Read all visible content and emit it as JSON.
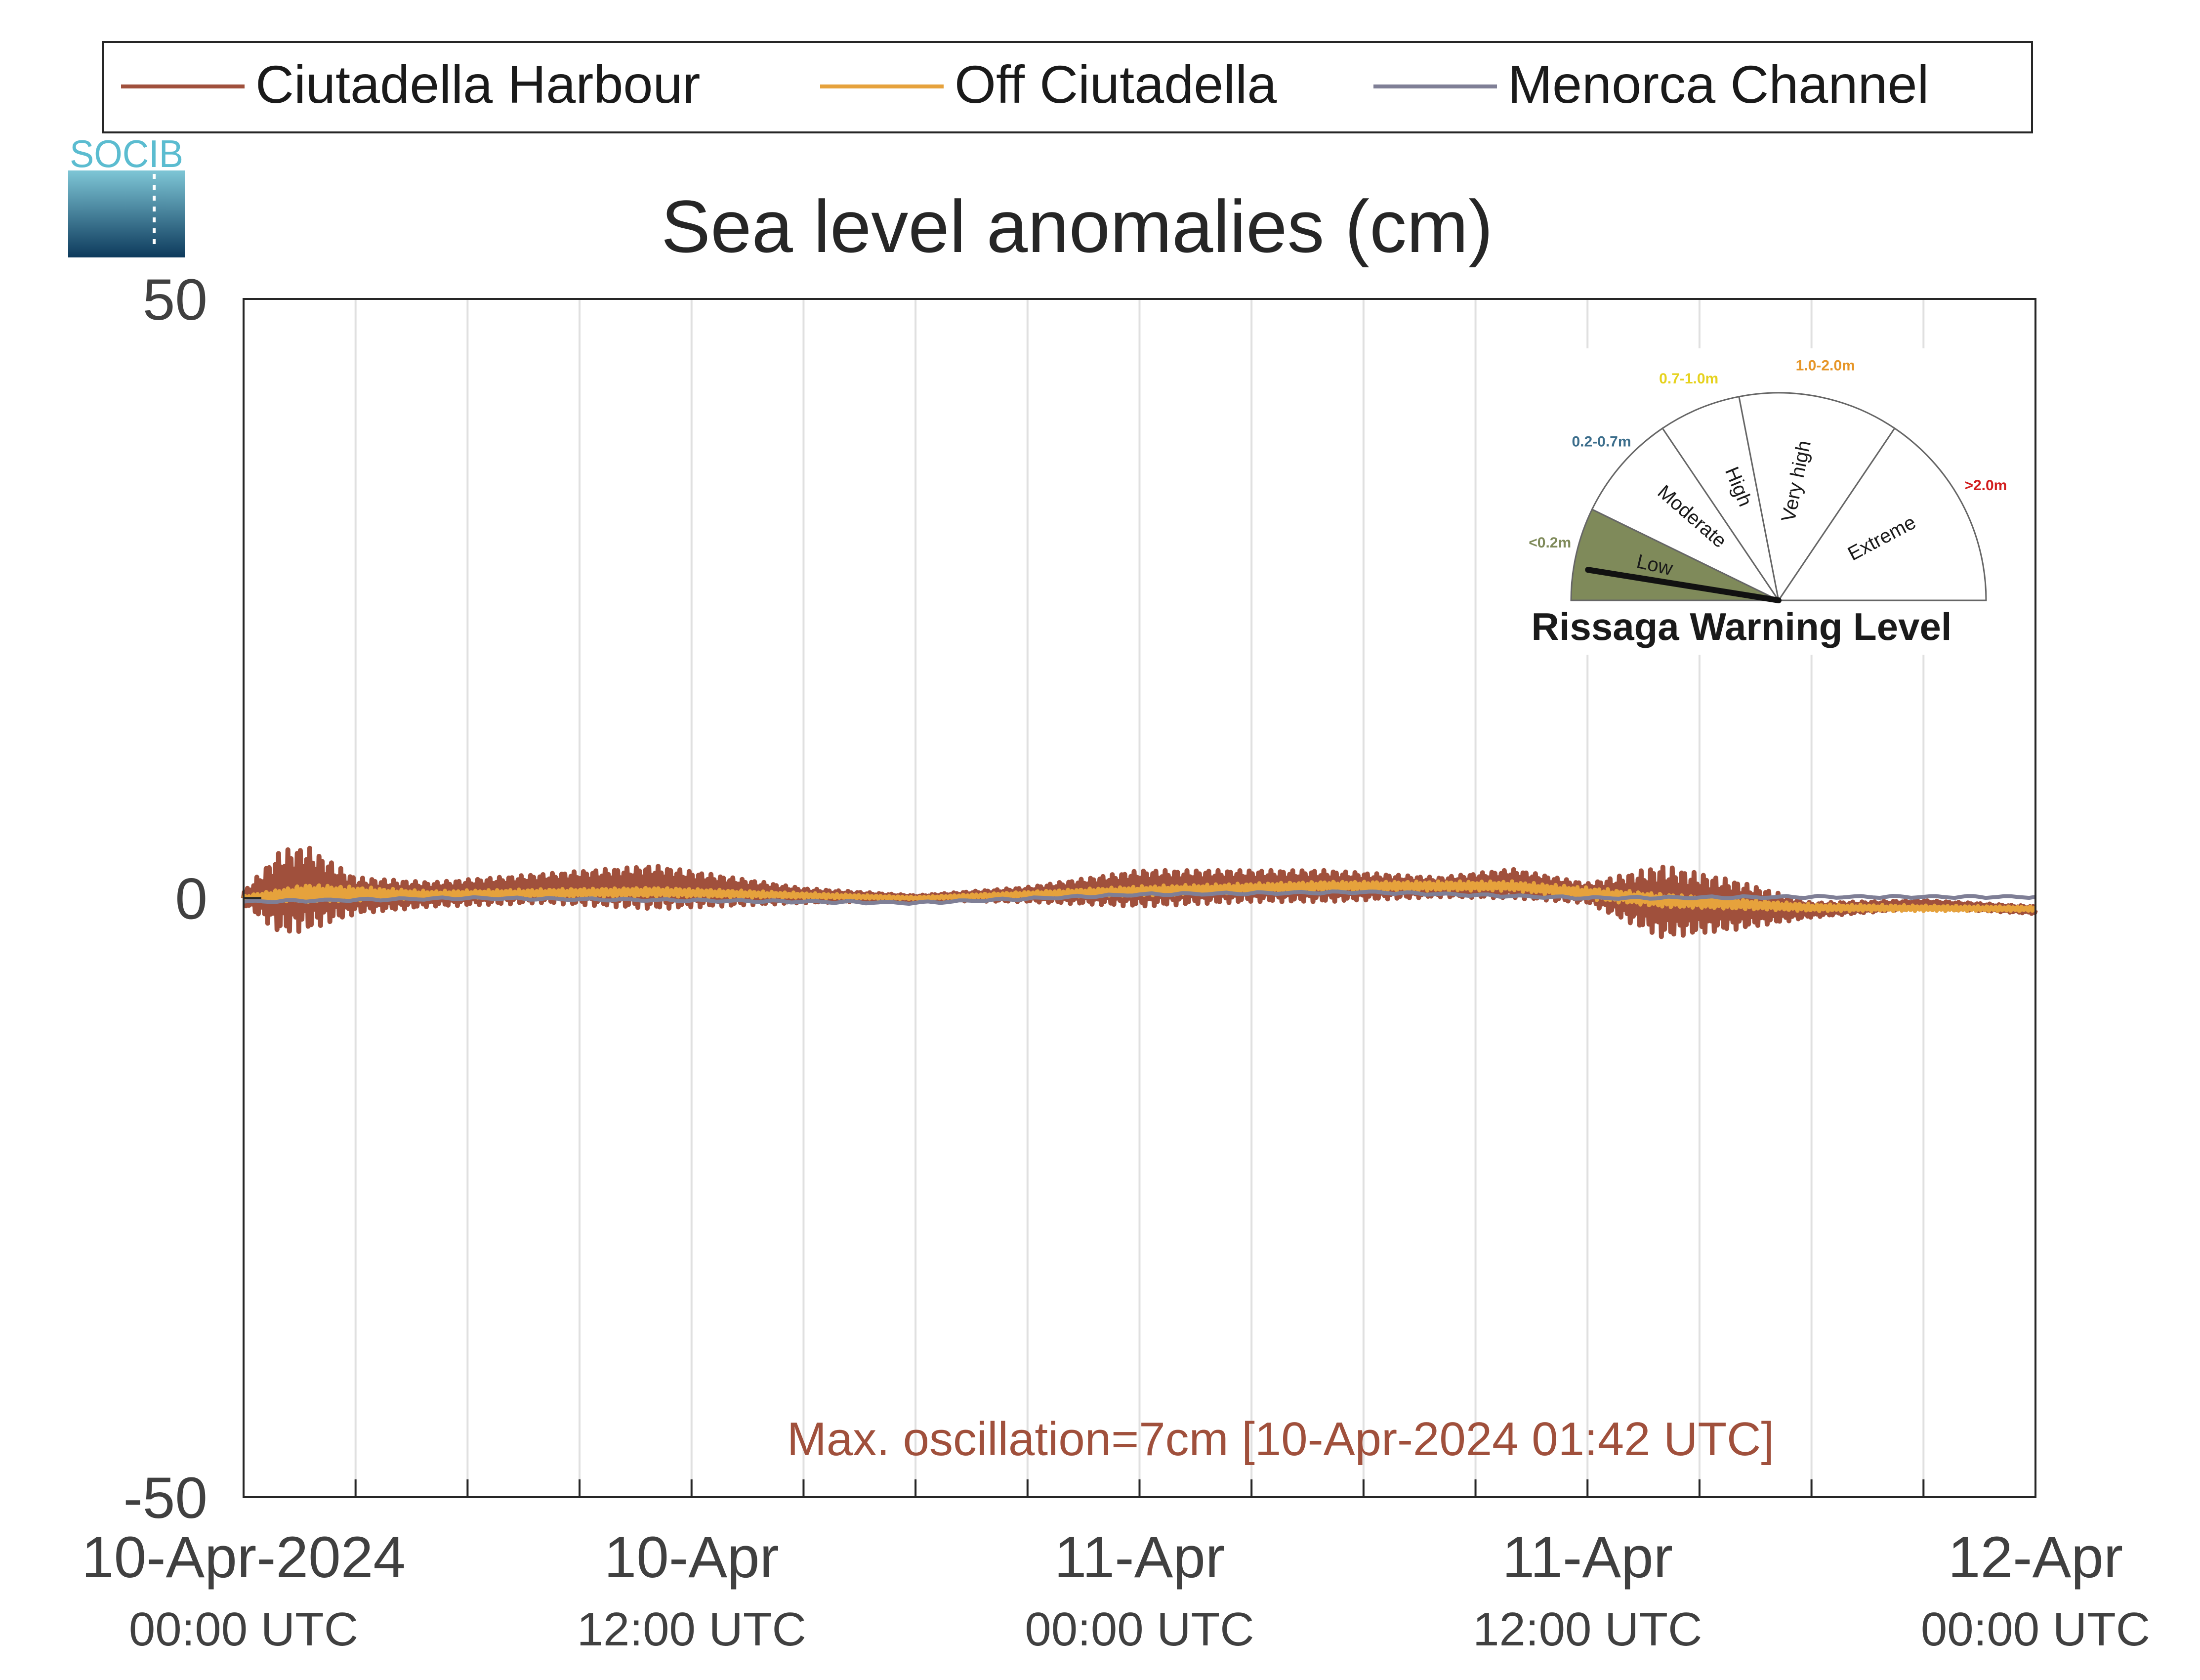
{
  "chart_data": {
    "type": "line",
    "title": "Sea level anomalies (cm)",
    "ylim": [
      -50,
      50
    ],
    "yticks": [
      -50,
      0,
      50
    ],
    "xlim": [
      "2024-04-10T00:00",
      "2024-04-12T00:00"
    ],
    "grid": "vertical every 3 hours",
    "legend_position": "top",
    "xticks": [
      {
        "x": "2024-04-10T00:00",
        "line1": "10-Apr-2024",
        "line2": "00:00 UTC"
      },
      {
        "x": "2024-04-10T12:00",
        "line1": "10-Apr",
        "line2": "12:00 UTC"
      },
      {
        "x": "2024-04-11T00:00",
        "line1": "11-Apr",
        "line2": "00:00 UTC"
      },
      {
        "x": "2024-04-11T12:00",
        "line1": "11-Apr",
        "line2": "12:00 UTC"
      },
      {
        "x": "2024-04-12T00:00",
        "line1": "12-Apr",
        "line2": "00:00 UTC"
      }
    ],
    "series": [
      {
        "name": "Ciutadella Harbour",
        "color": "#a0503c",
        "x": [
          "2024-04-10T00:00",
          "2024-04-10T01:00",
          "2024-04-10T01:42",
          "2024-04-10T03:00",
          "2024-04-10T05:00",
          "2024-04-10T08:00",
          "2024-04-10T11:00",
          "2024-04-10T15:00",
          "2024-04-10T18:00",
          "2024-04-10T21:00",
          "2024-04-11T00:00",
          "2024-04-11T03:00",
          "2024-04-11T05:00",
          "2024-04-11T08:00",
          "2024-04-11T10:00",
          "2024-04-11T12:00",
          "2024-04-11T14:00",
          "2024-04-11T16:00",
          "2024-04-11T18:00",
          "2024-04-11T21:00",
          "2024-04-12T00:00"
        ],
        "values": [
          0,
          0.5,
          0.8,
          0.2,
          0.3,
          0.8,
          0.9,
          0.2,
          0.0,
          0.3,
          0.8,
          1.0,
          1.0,
          0.9,
          1.2,
          0.4,
          -0.3,
          -0.6,
          -1.0,
          -0.5,
          -1.0
        ],
        "amplitude": [
          0.5,
          3.5,
          3.5,
          1.5,
          1.0,
          1.2,
          1.8,
          0.6,
          0.2,
          0.6,
          1.5,
          1.3,
          1.3,
          0.8,
          1.2,
          0.8,
          3.0,
          2.0,
          0.6,
          0.3,
          0.3
        ]
      },
      {
        "name": "Off Ciutadella",
        "color": "#e6a23c",
        "x": [
          "2024-04-10T00:00",
          "2024-04-10T01:42",
          "2024-04-10T05:00",
          "2024-04-10T11:00",
          "2024-04-10T18:00",
          "2024-04-11T00:00",
          "2024-04-11T05:00",
          "2024-04-11T10:00",
          "2024-04-11T14:00",
          "2024-04-11T18:00",
          "2024-04-12T00:00"
        ],
        "values": [
          0,
          0.4,
          0.3,
          0.5,
          0.0,
          0.6,
          1.0,
          1.0,
          -0.2,
          -0.8,
          -0.9
        ],
        "amplitude": [
          0.2,
          0.8,
          0.3,
          0.4,
          0.1,
          0.4,
          0.4,
          0.4,
          0.6,
          0.3,
          0.2
        ]
      },
      {
        "name": "Menorca Channel",
        "color": "#7f7f96",
        "x": [
          "2024-04-10T00:00",
          "2024-04-10T06:00",
          "2024-04-10T12:00",
          "2024-04-10T18:00",
          "2024-04-11T00:00",
          "2024-04-11T06:00",
          "2024-04-11T12:00",
          "2024-04-11T18:00",
          "2024-04-12T00:00"
        ],
        "values": [
          -0.3,
          0.0,
          -0.2,
          -0.4,
          0.3,
          0.5,
          0.0,
          0.1,
          0.1
        ],
        "amplitude": [
          0.1,
          0.1,
          0.1,
          0.1,
          0.1,
          0.1,
          0.1,
          0.1,
          0.1
        ]
      }
    ],
    "annotation": "Max. oscillation=7cm [10-Apr-2024 01:42 UTC]",
    "annotation_color": "#a0503c"
  },
  "logo": {
    "text": "SOCIB"
  },
  "gauge": {
    "title": "Rissaga Warning Level",
    "current_level": "Low",
    "current_value_m": 0.07,
    "levels": [
      {
        "name": "Low",
        "range": "<0.2m",
        "color": "#7f8a5a"
      },
      {
        "name": "Moderate",
        "range": "0.2-0.7m",
        "color": "#3c6e8c"
      },
      {
        "name": "High",
        "range": "0.7-1.0m",
        "color": "#e6d21e"
      },
      {
        "name": "Very high",
        "range": "1.0-2.0m",
        "color": "#e69628"
      },
      {
        "name": "Extreme",
        "range": ">2.0m",
        "color": "#d21e1e"
      }
    ]
  }
}
